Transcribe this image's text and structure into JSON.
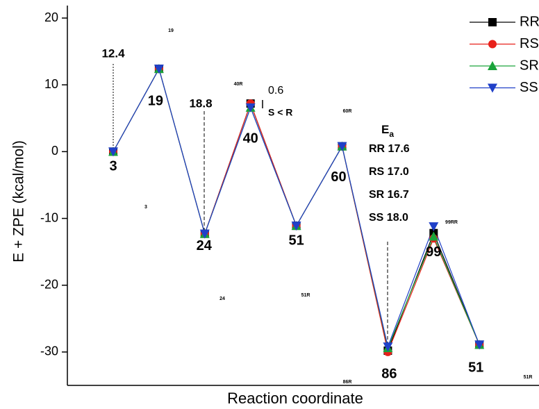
{
  "chart_data": {
    "type": "line",
    "y_label": "E + ZPE (kcal/mol)",
    "x_label": "Reaction coordinate",
    "categories": [
      "3",
      "19",
      "24",
      "40",
      "51",
      "60",
      "86",
      "99",
      "51"
    ],
    "series": [
      {
        "name": "RR",
        "color": "#000000",
        "marker": "square",
        "values": [
          0,
          12.4,
          -12.3,
          7.2,
          -11.1,
          0.8,
          -29.8,
          -12.2,
          -28.9
        ]
      },
      {
        "name": "RS",
        "color": "#e8201a",
        "marker": "circle",
        "values": [
          0,
          12.4,
          -12.3,
          7.2,
          -11.1,
          0.8,
          -30.0,
          -13.0,
          -28.9
        ]
      },
      {
        "name": "SR",
        "color": "#1aa33a",
        "marker": "triangle-up",
        "values": [
          0,
          12.4,
          -12.3,
          6.6,
          -11.1,
          0.8,
          -29.4,
          -12.7,
          -28.9
        ]
      },
      {
        "name": "SS",
        "color": "#2040c8",
        "marker": "triangle-down",
        "values": [
          0,
          12.4,
          -12.3,
          6.6,
          -11.1,
          0.8,
          -29.2,
          -11.2,
          -28.9
        ]
      }
    ],
    "ylim": [
      -35,
      20
    ],
    "yticks": [
      -30,
      -20,
      -10,
      0,
      10,
      20
    ],
    "legend": "upper right",
    "annotations": [
      "12.4",
      "18.8",
      "0.6",
      "S < R",
      "RR 17.6",
      "RS 17.0",
      "SR 16.7",
      "SS 18.0"
    ],
    "ea_label": {
      "main": "E",
      "sub": "a"
    },
    "structure_labels": [
      "19",
      "40R",
      "3",
      "24",
      "51R",
      "60R",
      "86R",
      "99RR",
      "51R"
    ]
  }
}
